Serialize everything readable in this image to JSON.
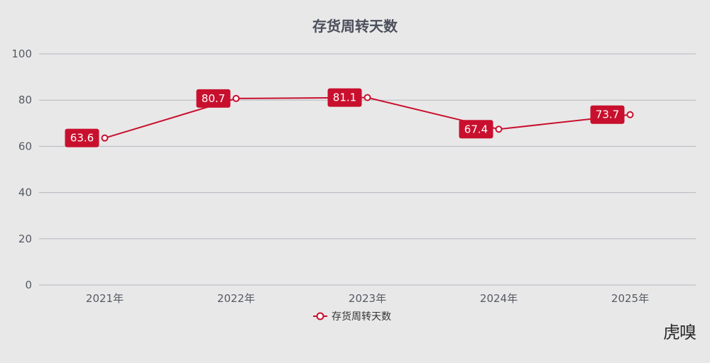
{
  "colors": {
    "series": "#c8102e",
    "label_bg": "#c8102e",
    "grid": "#b4b7bf",
    "background": "#e9e8e8"
  },
  "watermark": "虎嗅",
  "chart_data": {
    "type": "line",
    "title": "存货周转天数",
    "categories": [
      "2021年",
      "2022年",
      "2023年",
      "2024年",
      "2025年"
    ],
    "series": [
      {
        "name": "存货周转天数",
        "values": [
          63.6,
          80.7,
          81.1,
          67.4,
          73.7
        ]
      }
    ],
    "ylim": [
      0,
      100
    ],
    "yticks": [
      0,
      20,
      40,
      60,
      80,
      100
    ],
    "grid": true,
    "legend": "bottom-center",
    "data_labels": [
      "63.6",
      "80.7",
      "81.1",
      "67.4",
      "73.7"
    ]
  }
}
